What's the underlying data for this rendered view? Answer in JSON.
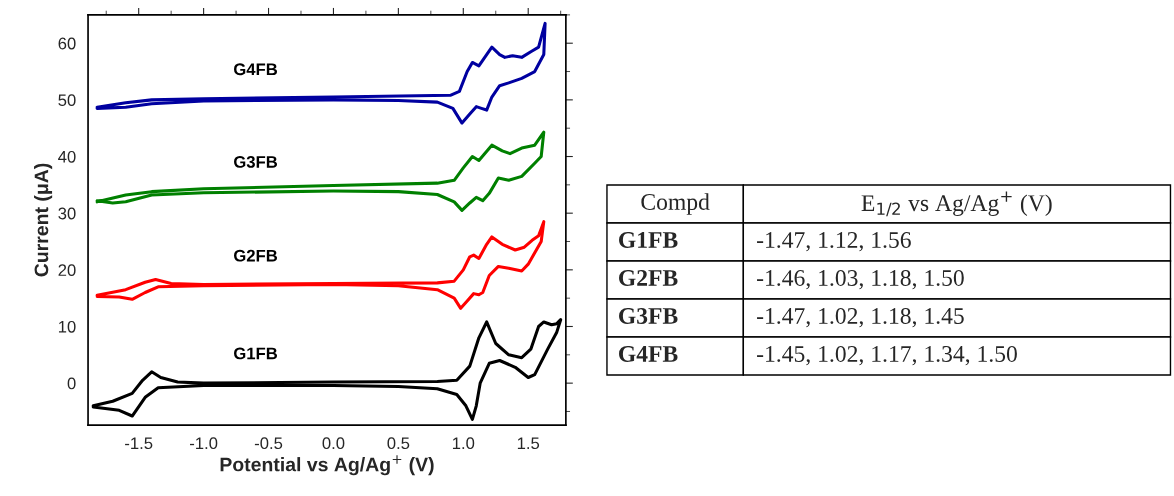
{
  "chart_data": [
    {
      "type": "line",
      "xlabel": "Potential vs Ag/Ag$^{+}$ (V)",
      "ylabel": "Current (μA)",
      "xlim": [
        -1.89,
        1.79
      ],
      "ylim": [
        -7.4,
        65
      ],
      "xticks": [
        -1.5,
        {
          "value": -1.0,
          "label": "-1.0"
        },
        -0.5,
        {
          "value": 0.0,
          "label": "0.0"
        },
        0.5,
        {
          "value": 1.0,
          "label": "1.0"
        },
        1.5
      ],
      "yticks": [
        0,
        10,
        20,
        30,
        40,
        50,
        60
      ],
      "grid": false,
      "legend": false,
      "marker": "none",
      "line_style": "solid",
      "series": [
        {
          "name": "G2FB",
          "color": "#ff0000",
          "x": [
            -1.82,
            -1.6,
            -1.45,
            -1.37,
            -1.25,
            -1.0,
            0,
            0.8,
            0.93,
            1.0,
            1.05,
            1.08,
            1.12,
            1.18,
            1.22,
            1.3,
            1.4,
            1.47,
            1.53,
            1.58,
            1.62,
            1.6,
            1.5,
            1.45,
            1.35,
            1.27,
            1.2,
            1.15,
            1.12,
            1.08,
            1.03,
            0.98,
            0.93,
            0.8,
            0.5,
            0,
            -1.0,
            -1.35,
            -1.45,
            -1.55,
            -1.65,
            -1.82
          ],
          "values": [
            15.5,
            16.5,
            17.8,
            18.3,
            17.6,
            17.4,
            17.6,
            17.7,
            18,
            20,
            22.3,
            22.6,
            22,
            24.5,
            25.8,
            24.5,
            23.5,
            24,
            25.2,
            26,
            28.5,
            25,
            21,
            19.8,
            20.3,
            20.6,
            19,
            16,
            15.6,
            15.8,
            14.5,
            13.2,
            15,
            16.5,
            17.2,
            17.4,
            17.2,
            17,
            16,
            14.8,
            15.2,
            15.3
          ]
        },
        {
          "name": "G3FB",
          "color": "#008000",
          "x": [
            -1.82,
            -1.6,
            -1.4,
            -1.0,
            0,
            0.8,
            0.93,
            1.0,
            1.07,
            1.12,
            1.22,
            1.3,
            1.36,
            1.45,
            1.55,
            1.62,
            1.6,
            1.55,
            1.45,
            1.35,
            1.27,
            1.2,
            1.15,
            1.1,
            1.05,
            0.99,
            0.93,
            0.8,
            0.5,
            0,
            -1.0,
            -1.4,
            -1.6,
            -1.7,
            -1.82
          ],
          "values": [
            32,
            33.2,
            33.8,
            34.3,
            34.9,
            35.3,
            35.8,
            38,
            40,
            39.3,
            42,
            41,
            40.5,
            41.5,
            42,
            44.3,
            40,
            38.8,
            36.5,
            35.8,
            36.2,
            33.5,
            32.2,
            32.8,
            31.8,
            30.5,
            32,
            33.3,
            33.8,
            33.9,
            33.6,
            33.2,
            32,
            31.8,
            32.2
          ]
        },
        {
          "name": "G4FB",
          "color": "#0000a0",
          "x": [
            -1.82,
            -1.6,
            -1.4,
            -1.0,
            0,
            0.9,
            0.97,
            1.03,
            1.07,
            1.12,
            1.18,
            1.22,
            1.28,
            1.32,
            1.38,
            1.45,
            1.52,
            1.58,
            1.63,
            1.62,
            1.55,
            1.45,
            1.35,
            1.28,
            1.22,
            1.18,
            1.14,
            1.1,
            1.05,
            0.99,
            0.92,
            0.8,
            0.5,
            0,
            -1.0,
            -1.4,
            -1.6,
            -1.82
          ],
          "values": [
            48.7,
            49.5,
            50,
            50.2,
            50.5,
            50.8,
            51.5,
            55,
            56.6,
            56,
            58,
            59.3,
            58,
            57.5,
            57.8,
            57.5,
            58.5,
            59.3,
            63.5,
            58,
            55,
            53.8,
            53,
            52.5,
            50.5,
            48.2,
            48.5,
            48.8,
            47.5,
            45.9,
            48.5,
            49.6,
            49.9,
            50,
            49.8,
            49.3,
            48.7,
            48.5
          ]
        },
        {
          "name": "G1FB",
          "color": "#000000",
          "x": [
            -1.85,
            -1.7,
            -1.55,
            -1.47,
            -1.4,
            -1.33,
            -1.2,
            -1.0,
            0,
            0.8,
            0.95,
            1.05,
            1.12,
            1.18,
            1.25,
            1.35,
            1.45,
            1.52,
            1.58,
            1.62,
            1.68,
            1.72,
            1.75,
            1.72,
            1.65,
            1.55,
            1.5,
            1.4,
            1.28,
            1.2,
            1.13,
            1.1,
            1.07,
            1.02,
            0.95,
            0.8,
            0.5,
            0,
            -1.0,
            -1.35,
            -1.45,
            -1.55,
            -1.65,
            -1.85
          ],
          "values": [
            -4,
            -3.2,
            -1.8,
            0.5,
            2.0,
            1.0,
            0.2,
            0,
            0.2,
            0.3,
            0.5,
            3,
            8,
            10.8,
            7,
            5,
            4.5,
            6,
            10,
            10.8,
            10.3,
            10.5,
            11.2,
            9,
            6,
            1.5,
            1.0,
            2.8,
            4,
            3.5,
            0,
            -4,
            -6.4,
            -4,
            -2,
            -1,
            -0.6,
            -0.4,
            -0.4,
            -0.8,
            -2.5,
            -5.8,
            -4.8,
            -4.2
          ]
        }
      ]
    },
    {
      "type": "other",
      "annotations": [
        "Compd",
        "E$_{1/2}$ vs Ag/Ag$^{+}$ (V)",
        "G1FB",
        "-1.47, 1.12, 1.56",
        "G2FB",
        "-1.46, 1.03, 1.18, 1.50",
        "G3FB",
        "-1.47, 1.02, 1.18, 1.45",
        "G4FB",
        "-1.45, 1.02, 1.17, 1.34, 1.50"
      ]
    }
  ]
}
